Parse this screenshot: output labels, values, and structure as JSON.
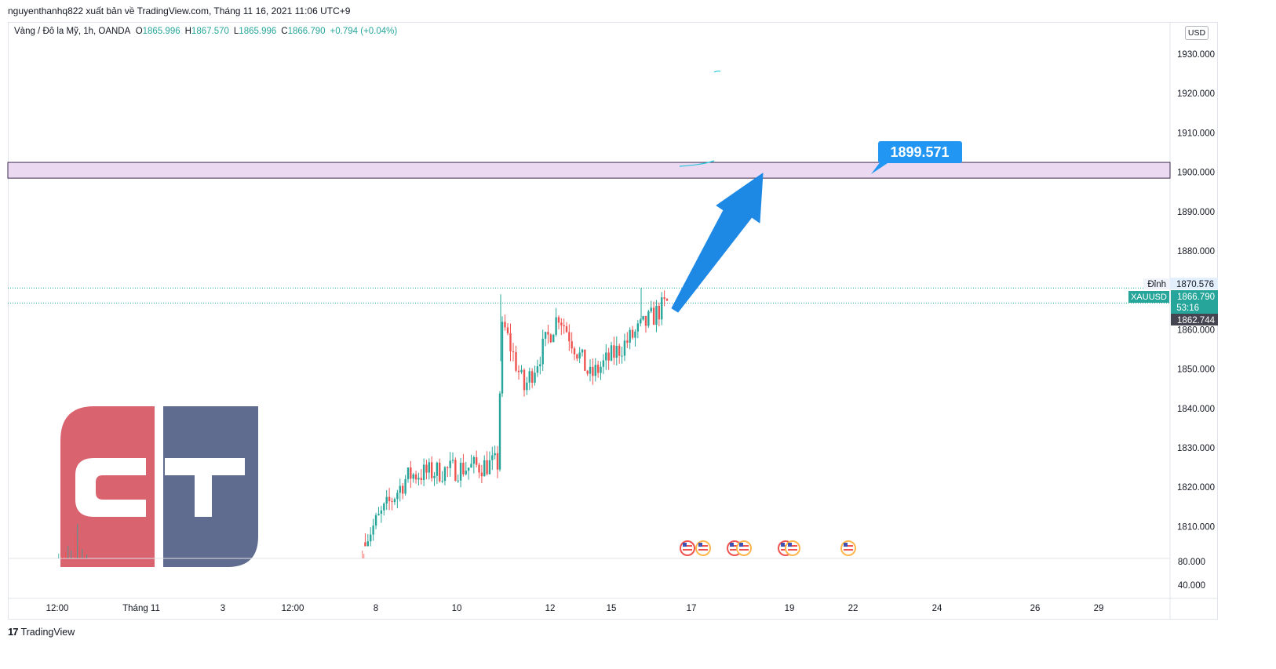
{
  "header": {
    "publisher_line": "nguyenthanhq822 xuất bản về TradingView.com, Tháng 11 16, 2021 11:06 UTC+9"
  },
  "legend": {
    "symbol": "Vàng / Đô la Mỹ, 1h, OANDA",
    "open_label": "O",
    "open": "1865.996",
    "high_label": "H",
    "high": "1867.570",
    "low_label": "L",
    "low": "1865.996",
    "close_label": "C",
    "close": "1866.790",
    "change": "+0.794 (+0.04%)"
  },
  "currency_button": "USD",
  "footer": {
    "logo": "17",
    "brand": "TradingView"
  },
  "colors": {
    "up": "#26a69a",
    "down": "#ef5350",
    "zone_fill": "#ead9f0",
    "zone_border": "#3c2a4d",
    "arrow": "#1e88e5",
    "label_bg": "#2196f3",
    "price_tag": "#26a69a",
    "dark_tag": "#434651",
    "logo_red": "#d9636f",
    "logo_blue": "#5f6b8f"
  },
  "price_axis": {
    "ticks": [
      "1930.000",
      "1920.000",
      "1910.000",
      "1900.000",
      "1890.000",
      "1880.000",
      "1860.000",
      "1850.000",
      "1840.000",
      "1830.000",
      "1820.000",
      "1810.000"
    ],
    "tick_values": [
      1930,
      1920,
      1910,
      1900,
      1890,
      1880,
      1860,
      1850,
      1840,
      1830,
      1820,
      1810
    ],
    "volume_ticks": [
      "80.000",
      "40.000"
    ],
    "high_label": "Đỉnh",
    "high_value": "1870.576",
    "symbol_tag": "XAUUSD",
    "last_price": "1866.790",
    "countdown": "53:16",
    "other_price": "1862.744"
  },
  "time_axis": {
    "labels": [
      "12:00",
      "Tháng 11",
      "3",
      "12:00",
      "8",
      "10",
      "12",
      "15",
      "17",
      "19",
      "22",
      "24",
      "26",
      "29"
    ]
  },
  "annotation": {
    "target_label": "1899.571"
  },
  "chart_data": {
    "type": "candlestick",
    "symbol": "XAUUSD",
    "interval": "1h",
    "title": "Vàng / Đô la Mỹ, 1h, OANDA",
    "ylim": [
      1806,
      1935
    ],
    "resistance_zone": [
      1898.5,
      1902.5
    ],
    "target": 1899.571,
    "last_price": 1866.79,
    "session_high": 1870.576,
    "segments": [
      {
        "from": "Nov 5",
        "to": "Nov 8",
        "start": 1806,
        "end": 1823,
        "low": 1805,
        "high": 1825
      },
      {
        "from": "Nov 8",
        "to": "Nov 10",
        "start": 1823,
        "end": 1826,
        "low": 1815,
        "high": 1833
      },
      {
        "from": "Nov 10",
        "to": "Nov 10",
        "start": 1826,
        "end": 1862,
        "low": 1824,
        "high": 1869
      },
      {
        "from": "Nov 10",
        "to": "Nov 11",
        "start": 1862,
        "end": 1845,
        "low": 1842,
        "high": 1864
      },
      {
        "from": "Nov 11",
        "to": "Nov 12",
        "start": 1845,
        "end": 1864,
        "low": 1843,
        "high": 1867
      },
      {
        "from": "Nov 12",
        "to": "Nov 15",
        "start": 1864,
        "end": 1848,
        "low": 1845,
        "high": 1866
      },
      {
        "from": "Nov 15",
        "to": "Nov 16",
        "start": 1848,
        "end": 1866.79,
        "low": 1846,
        "high": 1870.576
      }
    ]
  }
}
